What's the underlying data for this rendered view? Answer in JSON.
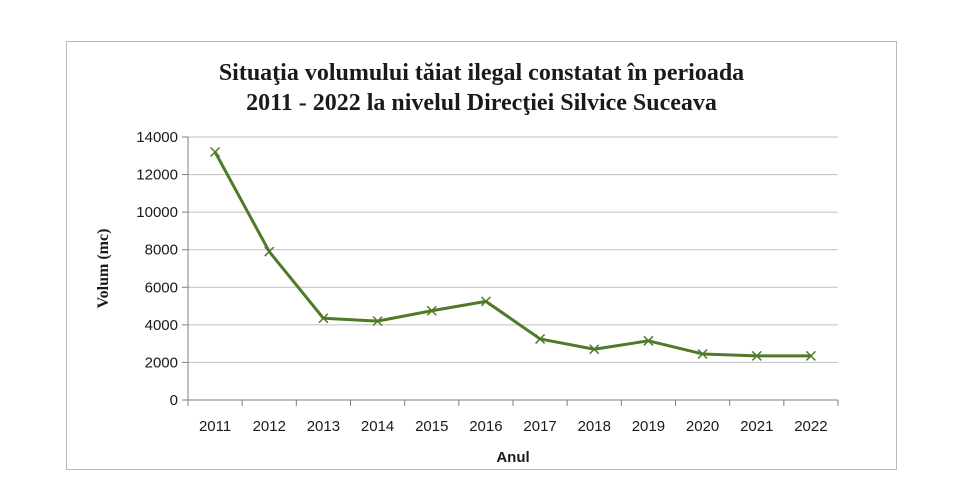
{
  "chart_data": {
    "type": "line",
    "title_line1": "Situaţia volumului tăiat ilegal constatat în perioada",
    "title_line2": "2011 - 2022 la nivelul Direcţiei Silvice Suceava",
    "xlabel": "Anul",
    "ylabel": "Volum (mc)",
    "categories": [
      "2011",
      "2012",
      "2013",
      "2014",
      "2015",
      "2016",
      "2017",
      "2018",
      "2019",
      "2020",
      "2021",
      "2022"
    ],
    "series": [
      {
        "values": [
          13200,
          7900,
          4350,
          4200,
          4750,
          5250,
          3250,
          2700,
          3150,
          2450,
          2350,
          2350
        ]
      }
    ],
    "ylim": [
      0,
      14000
    ],
    "yticks": [
      "0",
      "2000",
      "4000",
      "6000",
      "8000",
      "10000",
      "12000",
      "14000"
    ],
    "grid": true,
    "legend": "none",
    "line_color": "#4f7a28",
    "marker": "x"
  }
}
